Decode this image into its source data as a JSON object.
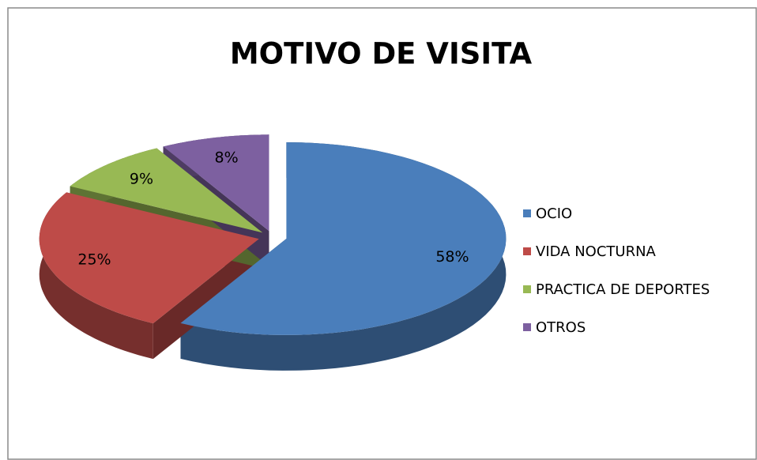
{
  "chart_data": {
    "type": "pie",
    "title": "MOTIVO DE VISITA",
    "categories": [
      "OCIO",
      "VIDA NOCTURNA",
      "PRACTICA DE DEPORTES",
      "OTROS"
    ],
    "values": [
      58,
      25,
      9,
      8
    ],
    "value_labels": [
      "58%",
      "25%",
      "9%",
      "8%"
    ],
    "colors": [
      "#4a7ebb",
      "#be4b48",
      "#98b954",
      "#7d60a0"
    ],
    "legend": "right"
  }
}
